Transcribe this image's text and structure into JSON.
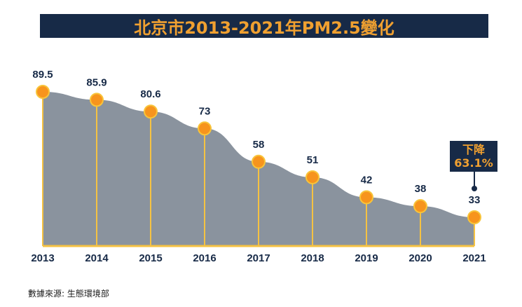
{
  "title": "北京市2013-2021年PM2.5變化",
  "source": "數據來源: 生態環境部",
  "callout": {
    "line1": "下降",
    "line2": "63.1%"
  },
  "colors": {
    "title_bg": "#172a47",
    "title_text": "#f0a030",
    "area_fill": "#8a939e",
    "stem": "#f5c242",
    "marker": "#f7941d",
    "marker_stroke": "#f8c43a",
    "label": "#172a47"
  },
  "chart_data": {
    "type": "area",
    "title": "北京市2013-2021年PM2.5變化",
    "xlabel": "",
    "ylabel": "",
    "categories": [
      "2013",
      "2014",
      "2015",
      "2016",
      "2017",
      "2018",
      "2019",
      "2020",
      "2021"
    ],
    "values": [
      89.5,
      85.9,
      80.6,
      73,
      58,
      51,
      42,
      38,
      33
    ],
    "data_labels": [
      "89.5",
      "85.9",
      "80.6",
      "73",
      "58",
      "51",
      "42",
      "38",
      "33"
    ],
    "ylim": [
      0,
      100
    ],
    "grid": false,
    "annotation": {
      "target": "2021",
      "text": "下降 63.1%"
    }
  }
}
